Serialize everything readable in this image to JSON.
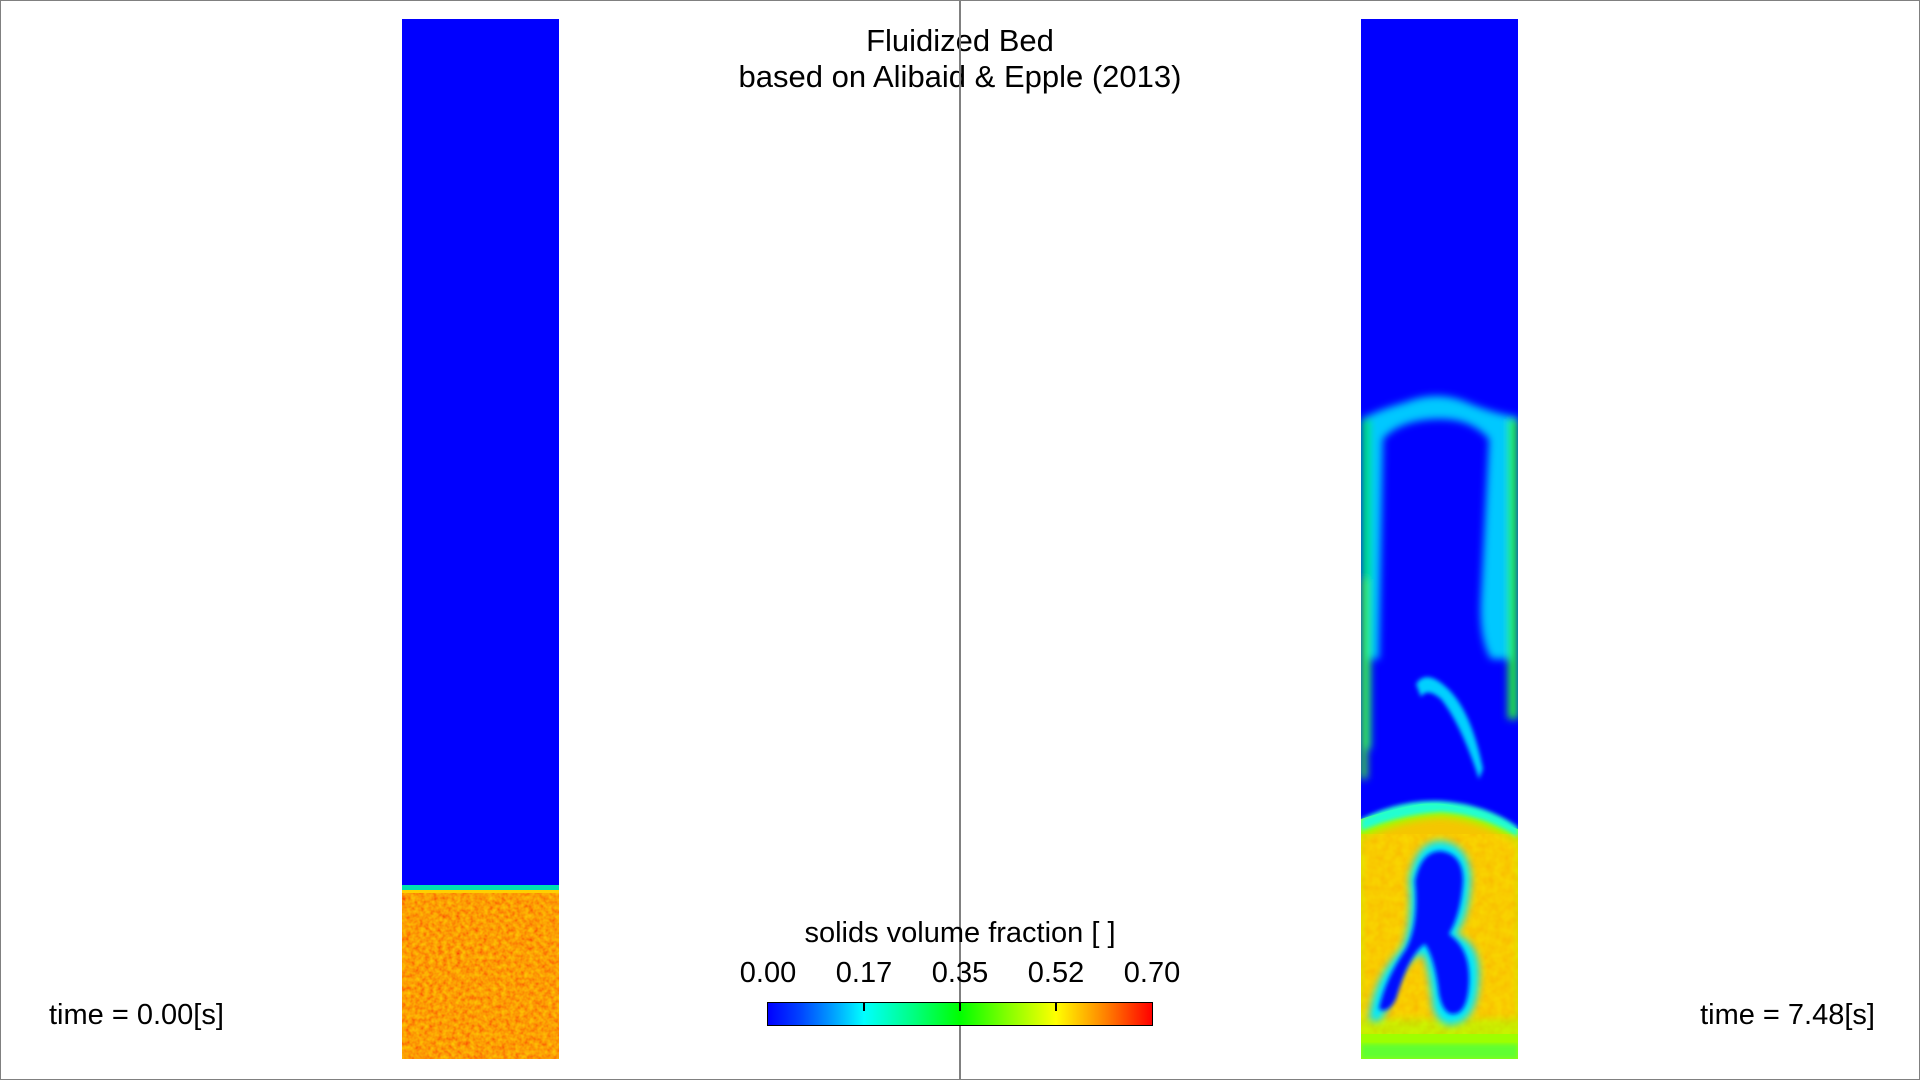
{
  "title": {
    "line1": "Fluidized Bed",
    "line2": "based on Alibaid & Epple (2013)"
  },
  "left_panel": {
    "time_label": "time = 0.00[s]",
    "bed_level": 0.17
  },
  "right_panel": {
    "time_label": "time = 7.48[s]"
  },
  "legend": {
    "title": "solids volume fraction [ ]",
    "ticks": [
      "0.00",
      "0.17",
      "0.35",
      "0.52",
      "0.70"
    ],
    "colormap": "blue-cyan-green-yellow-red"
  },
  "colors": {
    "low": "#0000ff",
    "high": "#ff0000",
    "frame": "#808080"
  }
}
